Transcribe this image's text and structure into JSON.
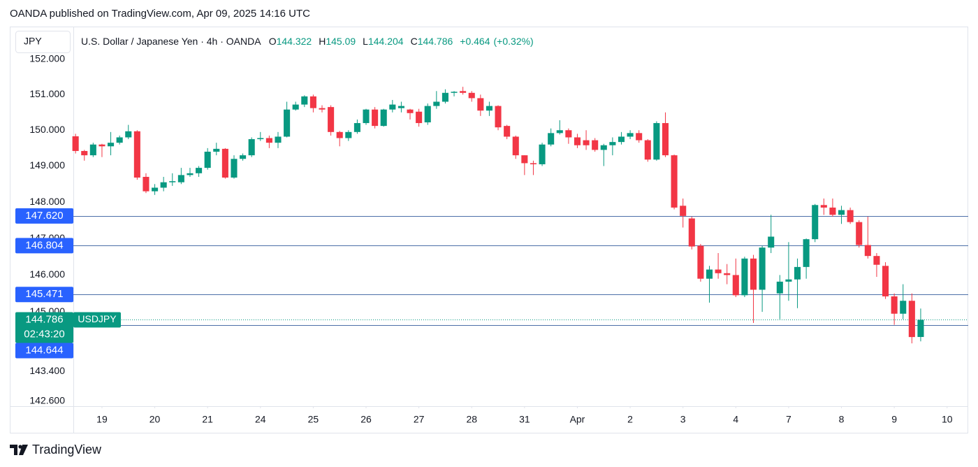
{
  "header": {
    "text": "OANDA published on TradingView.com, Apr 09, 2025 14:16 UTC"
  },
  "chart_data": {
    "type": "candlestick",
    "currency": "JPY",
    "title": "U.S. Dollar / Japanese Yen · 4h · OANDA",
    "ohlc_legend": [
      {
        "label": "O",
        "value": 144.322
      },
      {
        "label": "H",
        "value": 145.09
      },
      {
        "label": "L",
        "value": 144.204
      },
      {
        "label": "C",
        "value": 144.786
      }
    ],
    "change": {
      "value": 0.464,
      "label": "+0.464"
    },
    "change_percent": {
      "value": 0.32,
      "label": "(+0.32%)"
    },
    "symbol": "USDJPY",
    "countdown": "02:43:20",
    "last_price": {
      "value": 144.786,
      "label": "144.786"
    },
    "open": [
      149.83,
      149.42,
      149.3,
      149.6,
      149.55,
      149.65,
      149.8,
      149.97,
      148.7,
      148.3,
      148.4,
      148.55,
      148.55,
      148.75,
      148.8,
      148.95,
      149.4,
      149.48,
      148.68,
      149.2,
      149.3,
      149.75,
      149.78,
      149.65,
      149.82,
      150.58,
      150.72,
      150.95,
      150.62,
      150.65,
      149.95,
      149.78,
      149.95,
      150.2,
      150.58,
      150.12,
      150.58,
      150.62,
      150.58,
      150.52,
      150.22,
      150.68,
      150.8,
      151.05,
      151.1,
      151.05,
      150.9,
      150.55,
      150.68,
      150.12,
      149.82,
      149.3,
      149.08,
      149.05,
      149.6,
      149.92,
      150.0,
      149.8,
      149.72,
      149.72,
      149.45,
      149.58,
      149.67,
      149.82,
      149.92,
      149.72,
      149.18,
      150.2,
      149.3,
      147.9,
      147.55,
      146.8,
      145.9,
      146.15,
      146.05,
      146.0,
      145.45,
      146.45,
      145.6,
      146.75,
      145.5,
      145.82,
      145.88,
      146.22,
      146.98,
      147.92,
      147.85,
      147.65,
      147.78,
      147.45,
      146.82,
      146.52,
      146.25,
      145.42,
      144.95,
      145.3,
      144.322
    ],
    "high": [
      149.9,
      149.45,
      149.65,
      149.62,
      149.95,
      149.85,
      150.15,
      150.0,
      148.8,
      148.5,
      148.7,
      148.8,
      148.95,
      148.95,
      149.0,
      149.5,
      149.65,
      149.5,
      149.3,
      149.35,
      149.8,
      149.95,
      149.85,
      149.95,
      150.8,
      150.8,
      150.98,
      151.0,
      150.7,
      150.7,
      149.98,
      150.0,
      150.3,
      150.6,
      150.65,
      150.6,
      150.85,
      150.8,
      150.6,
      150.6,
      150.75,
      151.1,
      151.15,
      151.1,
      151.22,
      151.1,
      151.0,
      150.8,
      150.7,
      150.15,
      149.85,
      149.3,
      149.15,
      149.65,
      150.05,
      150.28,
      150.05,
      149.9,
      150.0,
      149.78,
      149.62,
      149.8,
      149.95,
      150.0,
      150.0,
      149.75,
      150.25,
      150.5,
      149.32,
      148.1,
      147.6,
      146.85,
      146.25,
      146.6,
      146.3,
      146.45,
      146.5,
      146.55,
      146.8,
      147.65,
      146.0,
      146.9,
      146.45,
      147.0,
      147.95,
      148.1,
      148.1,
      147.9,
      147.85,
      147.5,
      147.6,
      146.6,
      146.35,
      145.5,
      145.75,
      145.5,
      145.09
    ],
    "low": [
      149.35,
      149.15,
      149.25,
      149.25,
      149.3,
      149.6,
      149.75,
      148.62,
      148.25,
      148.2,
      148.3,
      148.45,
      148.5,
      148.7,
      148.7,
      148.9,
      149.3,
      148.65,
      148.65,
      149.15,
      149.25,
      149.7,
      149.5,
      149.5,
      149.8,
      150.55,
      150.65,
      150.5,
      150.5,
      149.85,
      149.55,
      149.7,
      149.9,
      150.15,
      150.05,
      150.1,
      150.5,
      150.5,
      150.3,
      150.1,
      150.15,
      150.6,
      150.75,
      150.95,
      151.0,
      150.8,
      150.4,
      150.4,
      150.0,
      149.75,
      149.2,
      148.75,
      148.75,
      149.0,
      149.55,
      149.88,
      149.62,
      149.5,
      149.45,
      149.4,
      149.0,
      149.3,
      149.6,
      149.75,
      149.65,
      149.12,
      149.15,
      149.25,
      147.8,
      147.3,
      146.7,
      145.82,
      145.25,
      145.9,
      145.75,
      145.4,
      145.4,
      144.7,
      145.0,
      146.6,
      144.8,
      145.3,
      145.1,
      145.9,
      146.9,
      147.65,
      147.6,
      147.4,
      147.4,
      146.75,
      146.45,
      145.95,
      145.35,
      144.65,
      144.8,
      144.15,
      144.204
    ],
    "close": [
      149.42,
      149.3,
      149.6,
      149.55,
      149.65,
      149.8,
      149.97,
      148.68,
      148.3,
      148.4,
      148.55,
      148.58,
      148.75,
      148.8,
      148.95,
      149.4,
      149.48,
      148.68,
      149.2,
      149.3,
      149.75,
      149.78,
      149.65,
      149.82,
      150.58,
      150.72,
      150.95,
      150.62,
      150.58,
      149.95,
      149.78,
      149.95,
      150.2,
      150.58,
      150.12,
      150.58,
      150.72,
      150.68,
      150.48,
      150.2,
      150.68,
      150.8,
      151.05,
      151.08,
      151.05,
      150.9,
      150.55,
      150.68,
      150.08,
      149.82,
      149.3,
      149.08,
      149.05,
      149.6,
      149.92,
      150.0,
      149.8,
      149.58,
      149.58,
      149.45,
      149.58,
      149.67,
      149.82,
      149.92,
      149.72,
      149.18,
      150.2,
      149.3,
      147.85,
      147.62,
      146.78,
      145.9,
      146.15,
      146.05,
      146.0,
      145.45,
      146.45,
      145.6,
      146.75,
      147.05,
      145.82,
      145.88,
      146.22,
      146.98,
      147.92,
      147.85,
      147.65,
      147.78,
      147.45,
      146.82,
      146.52,
      146.28,
      145.42,
      144.95,
      145.3,
      144.32,
      144.786
    ],
    "up_color": "#089981",
    "down_color": "#f23645",
    "price_line_color": "#2962ff",
    "price_lines": [
      {
        "value": 147.62,
        "label": "147.620"
      },
      {
        "value": 146.804,
        "label": "146.804"
      },
      {
        "value": 145.471,
        "label": "145.471"
      },
      {
        "value": 144.644,
        "label": "144.644"
      }
    ],
    "log_scale": true,
    "grid": false,
    "ylim": [
      142.47,
      152.93
    ],
    "yticks": [
      {
        "value": 152,
        "label": "152.000"
      },
      {
        "value": 151,
        "label": "151.000"
      },
      {
        "value": 150,
        "label": "150.000"
      },
      {
        "value": 149,
        "label": "149.000"
      },
      {
        "value": 148,
        "label": "148.000"
      },
      {
        "value": 147,
        "label": "147.000"
      },
      {
        "value": 146,
        "label": "146.000"
      },
      {
        "value": 145,
        "label": "145.000"
      },
      {
        "value": 143.4,
        "label": "143.400"
      },
      {
        "value": 142.6,
        "label": "142.600"
      }
    ],
    "xlim": [
      -0.25,
      101.4
    ],
    "xticks": [
      {
        "value": 3,
        "label": "19"
      },
      {
        "value": 9,
        "label": "20"
      },
      {
        "value": 15,
        "label": "21"
      },
      {
        "value": 21,
        "label": "24"
      },
      {
        "value": 27,
        "label": "25"
      },
      {
        "value": 33,
        "label": "26"
      },
      {
        "value": 39,
        "label": "27"
      },
      {
        "value": 45,
        "label": "28"
      },
      {
        "value": 51,
        "label": "31"
      },
      {
        "value": 57,
        "label": "Apr"
      },
      {
        "value": 63,
        "label": "2"
      },
      {
        "value": 69,
        "label": "3"
      },
      {
        "value": 75,
        "label": "4"
      },
      {
        "value": 81,
        "label": "7"
      },
      {
        "value": 87,
        "label": "8"
      },
      {
        "value": 93,
        "label": "9"
      },
      {
        "value": 99,
        "label": "10"
      }
    ]
  },
  "footer": {
    "brand": "TradingView"
  }
}
